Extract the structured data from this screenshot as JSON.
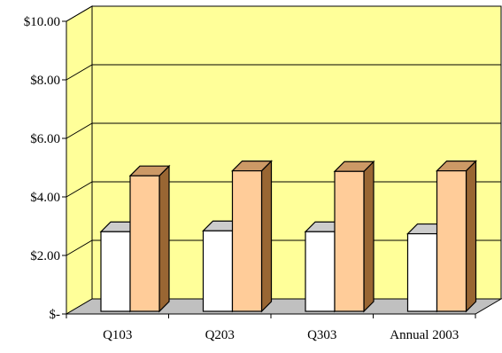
{
  "chart_data": {
    "type": "bar",
    "style": "3d-clustered-column",
    "title": "",
    "xlabel": "",
    "ylabel": "",
    "categories": [
      "Q103",
      "Q203",
      "Q303",
      "Annual 2003"
    ],
    "ylim": [
      0,
      10
    ],
    "y_ticks": [
      0,
      2,
      4,
      6,
      8,
      10
    ],
    "y_tick_labels": [
      "$-",
      "$2.00",
      "$4.00",
      "$6.00",
      "$8.00",
      "$10.00"
    ],
    "grid": true,
    "legend": "none",
    "series": [
      {
        "values": [
          2.72,
          2.75,
          2.72,
          2.65
        ]
      },
      {
        "values": [
          4.63,
          4.8,
          4.78,
          4.8
        ]
      }
    ],
    "colors": {
      "wall": "#ffff99",
      "floor": "#c0c0c0",
      "series_1_front": "#ffffff",
      "series_1_top": "#cccccc",
      "series_1_side": "#999999",
      "series_2_front": "#ffcc99",
      "series_2_top": "#cc9966",
      "series_2_side": "#996633",
      "outline": "#000000"
    }
  }
}
